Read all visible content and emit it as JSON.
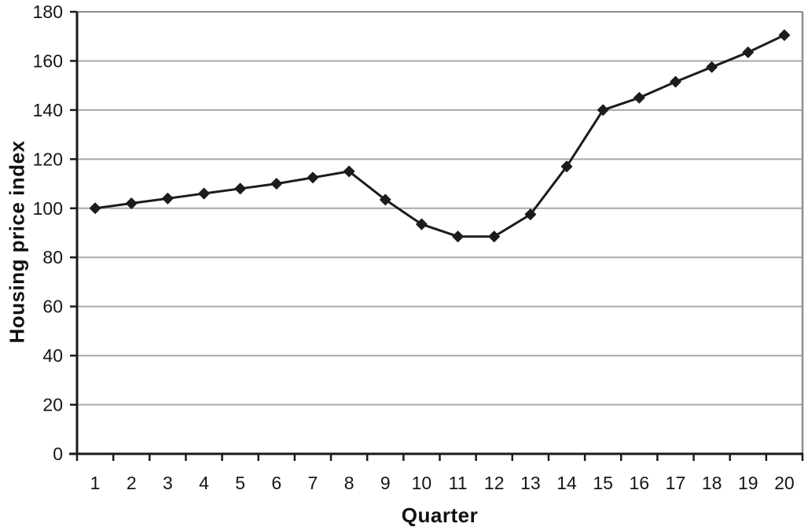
{
  "chart_data": {
    "type": "line",
    "title": "",
    "xlabel": "Quarter",
    "ylabel": "Housing price index",
    "categories": [
      1,
      2,
      3,
      4,
      5,
      6,
      7,
      8,
      9,
      10,
      11,
      12,
      13,
      14,
      15,
      16,
      17,
      18,
      19,
      20
    ],
    "series": [
      {
        "name": "Housing price index",
        "values": [
          100,
          102,
          104,
          106,
          108,
          110,
          112.5,
          115,
          103.5,
          93.5,
          88.5,
          88.5,
          97.5,
          117,
          140,
          145,
          151.5,
          157.5,
          163.5,
          170.5
        ]
      }
    ],
    "ylim": [
      0,
      180
    ],
    "yticks": [
      0,
      20,
      40,
      60,
      80,
      100,
      120,
      140,
      160,
      180
    ],
    "grid": "horizontal-solid",
    "legend_position": "none",
    "marker": "diamond",
    "line_color": "#1c1c1c",
    "marker_color": "#1c1c1c",
    "grid_color": "#a8a8a8",
    "border_color": "#8d8d8d",
    "axis_color": "#1a1a1a",
    "background": "#ffffff"
  }
}
